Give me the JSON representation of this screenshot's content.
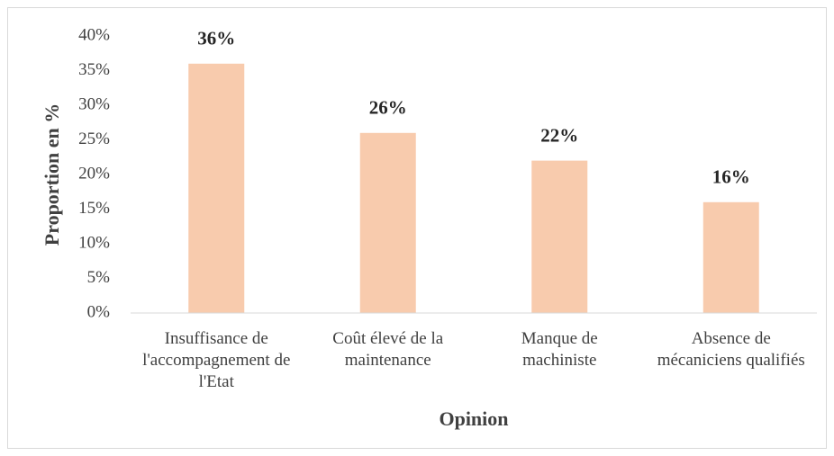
{
  "chart_data": {
    "type": "bar",
    "categories": [
      "Insuffisance de l'accompagnement de l'Etat",
      "Coût élevé de la maintenance",
      "Manque de machiniste",
      "Absence de mécaniciens qualifiés"
    ],
    "values": [
      36,
      26,
      22,
      16
    ],
    "value_labels": [
      "36%",
      "26%",
      "22%",
      "16%"
    ],
    "color": "#f8cbad",
    "ylim": [
      0,
      40
    ],
    "yticks": [
      {
        "value": 0,
        "label": "0%"
      },
      {
        "value": 5,
        "label": "5%"
      },
      {
        "value": 10,
        "label": "10%"
      },
      {
        "value": 15,
        "label": "15%"
      },
      {
        "value": 20,
        "label": "20%"
      },
      {
        "value": 25,
        "label": "25%"
      },
      {
        "value": 30,
        "label": "30%"
      },
      {
        "value": 35,
        "label": "35%"
      },
      {
        "value": 40,
        "label": "40%"
      }
    ],
    "x_label": "Opinion",
    "y_label": "Proportion en %",
    "grid": false
  }
}
